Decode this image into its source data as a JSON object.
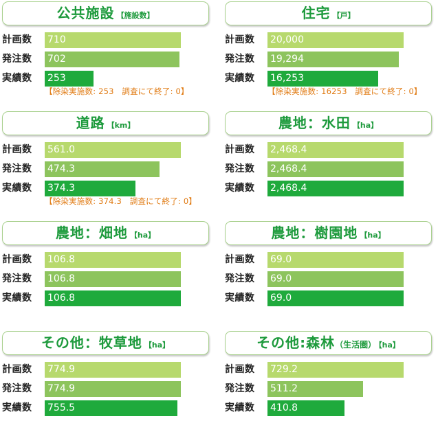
{
  "row_labels": [
    "計画数",
    "発注数",
    "実績数"
  ],
  "colors": {
    "planned": "#b7d96d",
    "ordered": "#8dc45d",
    "actual": "#1faa3c",
    "title": "#1d9a3c",
    "note": "#e07a12"
  },
  "chart_data": [
    {
      "type": "bar",
      "title": "公共施設",
      "title_paren": "",
      "unit": "【施設数】",
      "categories": [
        "計画数",
        "発注数",
        "実績数"
      ],
      "values": [
        710,
        702,
        253
      ],
      "value_labels": [
        "710",
        "702",
        "253"
      ],
      "note": "【除染実施数: 253　調査にて終了: 0】"
    },
    {
      "type": "bar",
      "title": "住宅",
      "title_paren": "",
      "unit": "【戸】",
      "categories": [
        "計画数",
        "発注数",
        "実績数"
      ],
      "values": [
        20000,
        19294,
        16253
      ],
      "value_labels": [
        "20,000",
        "19,294",
        "16,253"
      ],
      "note": "【除染実施数: 16253　調査にて終了: 0】"
    },
    {
      "type": "bar",
      "title": "道路",
      "title_paren": "",
      "unit": "【km】",
      "categories": [
        "計画数",
        "発注数",
        "実績数"
      ],
      "values": [
        561.0,
        474.3,
        374.3
      ],
      "value_labels": [
        "561.0",
        "474.3",
        "374.3"
      ],
      "note": "【除染実施数: 374.3　調査にて終了: 0】"
    },
    {
      "type": "bar",
      "title": "農地：水田",
      "title_paren": "",
      "unit": "【ha】",
      "categories": [
        "計画数",
        "発注数",
        "実績数"
      ],
      "values": [
        2468.4,
        2468.4,
        2468.4
      ],
      "value_labels": [
        "2,468.4",
        "2,468.4",
        "2,468.4"
      ],
      "note": ""
    },
    {
      "type": "bar",
      "title": "農地：畑地",
      "title_paren": "",
      "unit": "【ha】",
      "categories": [
        "計画数",
        "発注数",
        "実績数"
      ],
      "values": [
        106.8,
        106.8,
        106.8
      ],
      "value_labels": [
        "106.8",
        "106.8",
        "106.8"
      ],
      "note": ""
    },
    {
      "type": "bar",
      "title": "農地：樹園地",
      "title_paren": "",
      "unit": "【ha】",
      "categories": [
        "計画数",
        "発注数",
        "実績数"
      ],
      "values": [
        69.0,
        69.0,
        69.0
      ],
      "value_labels": [
        "69.0",
        "69.0",
        "69.0"
      ],
      "note": ""
    },
    {
      "type": "bar",
      "title": "その他：牧草地",
      "title_paren": "",
      "unit": "【ha】",
      "categories": [
        "計画数",
        "発注数",
        "実績数"
      ],
      "values": [
        774.9,
        774.9,
        755.5
      ],
      "value_labels": [
        "774.9",
        "774.9",
        "755.5"
      ],
      "note": ""
    },
    {
      "type": "bar",
      "title": "その他:森林",
      "title_paren": "（生活圏）",
      "unit": "【ha】",
      "categories": [
        "計画数",
        "発注数",
        "実績数"
      ],
      "values": [
        729.2,
        511.2,
        410.8
      ],
      "value_labels": [
        "729.2",
        "511.2",
        "410.8"
      ],
      "note": ""
    }
  ]
}
